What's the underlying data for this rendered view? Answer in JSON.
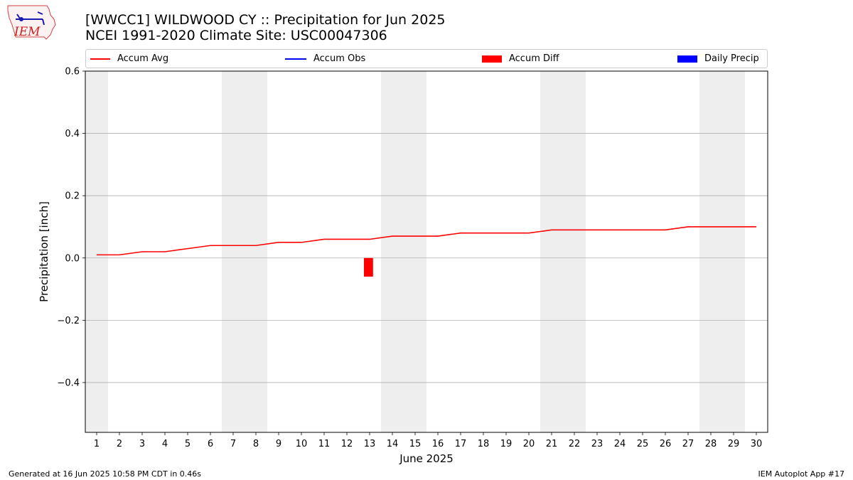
{
  "header": {
    "title_line1": "[WWCC1] WILDWOOD CY :: Precipitation for Jun 2025",
    "title_line2": "NCEI 1991-2020 Climate Site: USC00047306"
  },
  "logo": {
    "text": "IEM"
  },
  "footer": {
    "left": "Generated at 16 Jun 2025 10:58 PM CDT in 0.46s",
    "right": "IEM Autoplot App #17"
  },
  "colors": {
    "accum_avg": "#ff0000",
    "accum_obs": "#0000ff",
    "accum_diff": "#ff0000",
    "daily_precip": "#0000ff",
    "weekend_shade": "#eeeeee",
    "grid": "#b0b0b0"
  },
  "chart_data": {
    "type": "line",
    "xlabel": "June 2025",
    "ylabel": "Precipitation [inch]",
    "ylim": [
      -0.56,
      0.6
    ],
    "yticks": [
      0.6,
      0.4,
      0.2,
      0.0,
      -0.2,
      -0.4
    ],
    "ytick_labels": [
      "0.6",
      "0.4",
      "0.2",
      "0.0",
      "−0.2",
      "−0.4"
    ],
    "xlim": [
      0.5,
      30.5
    ],
    "x": [
      1,
      2,
      3,
      4,
      5,
      6,
      7,
      8,
      9,
      10,
      11,
      12,
      13,
      14,
      15,
      16,
      17,
      18,
      19,
      20,
      21,
      22,
      23,
      24,
      25,
      26,
      27,
      28,
      29,
      30
    ],
    "weekend_days": [
      1,
      7,
      8,
      14,
      15,
      21,
      22,
      28,
      29
    ],
    "grid": "horizontal",
    "legend_position": "top",
    "legend": [
      "Accum Avg",
      "Accum Obs",
      "Accum Diff",
      "Daily Precip"
    ],
    "series": [
      {
        "name": "Accum Avg",
        "kind": "line",
        "values": [
          0.01,
          0.01,
          0.02,
          0.02,
          0.03,
          0.04,
          0.04,
          0.04,
          0.05,
          0.05,
          0.06,
          0.06,
          0.06,
          0.07,
          0.07,
          0.07,
          0.08,
          0.08,
          0.08,
          0.08,
          0.09,
          0.09,
          0.09,
          0.09,
          0.09,
          0.09,
          0.1,
          0.1,
          0.1,
          0.1
        ]
      },
      {
        "name": "Accum Diff",
        "kind": "bar",
        "points": [
          {
            "x": 13,
            "value": -0.06
          }
        ]
      }
    ]
  }
}
